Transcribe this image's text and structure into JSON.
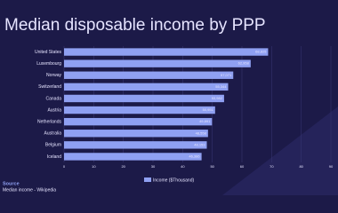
{
  "chart_data": {
    "type": "bar",
    "orientation": "horizontal",
    "title": "Median disposable income by PPP",
    "categories": [
      "United States",
      "Luxembourg",
      "Norway",
      "Switzerland",
      "Canada",
      "Austria",
      "Netherlands",
      "Australia",
      "Belgium",
      "Iceland"
    ],
    "series": [
      {
        "name": "Income ($Thousand)",
        "color": "#8fa0f2",
        "values": [
          68.825,
          62.958,
          57.071,
          55.344,
          53.982,
          50.951,
          49.891,
          48.558,
          48.153,
          46.386
        ],
        "value_labels": [
          "68,825",
          "62,958",
          "57,071",
          "55,344",
          "53,982",
          "50,951",
          "49,891",
          "48,558",
          "48,153",
          "46,386"
        ]
      }
    ],
    "xlim": [
      0,
      90
    ],
    "xticks": [
      0,
      10,
      20,
      30,
      40,
      50,
      60,
      70,
      80,
      90
    ],
    "grid": true,
    "source_title": "Source",
    "source": "Median income - Wikipedia"
  }
}
